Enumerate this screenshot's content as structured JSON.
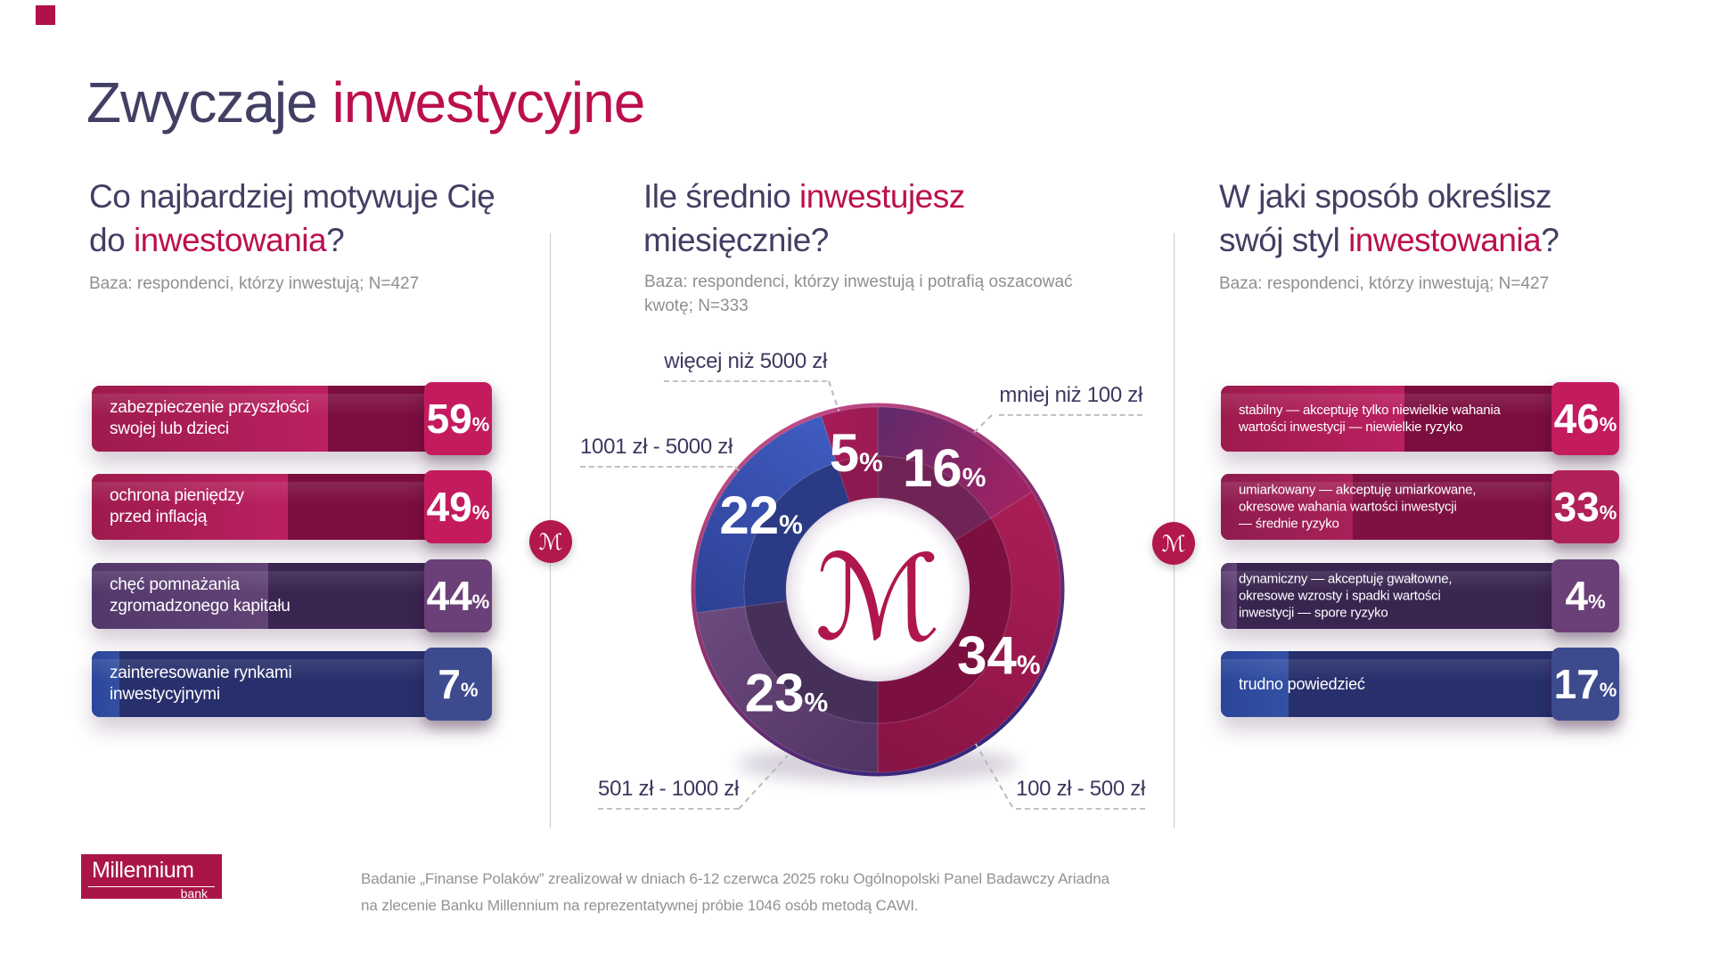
{
  "brand": {
    "color": "#b0114a"
  },
  "title": {
    "dark": "Zwyczaje ",
    "accent": "inwestycyjne"
  },
  "units": {
    "percent": "%"
  },
  "left": {
    "q1": "Co najbardziej motywuje Cię",
    "q2a": "do ",
    "q2b": "inwestowania",
    "q2c": "?",
    "base_note": "Baza: respondenci, którzy inwestują; N=427",
    "bars": [
      {
        "lines": [
          "zabezpieczenie przyszłości",
          "swojej lub dzieci"
        ],
        "value": 59
      },
      {
        "lines": [
          "ochrona pieniędzy",
          "przed inflacją"
        ],
        "value": 49
      },
      {
        "lines": [
          "chęć pomnażania",
          "zgromadzonego kapitału"
        ],
        "value": 44
      },
      {
        "lines": [
          "zainteresowanie rynkami",
          "inwestycyjnymi"
        ],
        "value": 7
      }
    ]
  },
  "middle": {
    "q1a": "Ile średnio ",
    "q1b": "inwestujesz",
    "q2": "miesięcznie?",
    "base_note_line1": "Baza: respondenci, którzy inwestują i potrafią oszacować",
    "base_note_line2": "kwotę; N=333"
  },
  "right": {
    "q1": "W jaki sposób określisz",
    "q2a": "swój styl ",
    "q2b": "inwestowania",
    "q2c": "?",
    "base_note": "Baza: respondenci, którzy inwestują; N=427",
    "bars": [
      {
        "lines": [
          "stabilny — akceptuję tylko niewielkie wahania",
          "wartości inwestycji — niewielkie ryzyko"
        ],
        "value": 46
      },
      {
        "lines": [
          "umiarkowany — akceptuję umiarkowane,",
          "okresowe wahania wartości inwestycji",
          "— średnie ryzyko"
        ],
        "value": 33
      },
      {
        "lines": [
          "dynamiczny — akceptuję gwałtowne,",
          "okresowe wzrosty i spadki wartości",
          "inwestycji — spore ryzyko"
        ],
        "value": 4
      },
      {
        "lines": [
          "trudno powiedzieć"
        ],
        "value": 17
      }
    ]
  },
  "chart_data": {
    "type": "pie",
    "donut": true,
    "title": "Ile średnio inwestujesz miesięcznie?",
    "start_angle_deg": 0,
    "direction": "clockwise",
    "slices": [
      {
        "label": "mniej niż 100 zł",
        "value": 16,
        "c1": "#5e2a6b",
        "c2": "#a32263",
        "inner": "#702455"
      },
      {
        "label": "100 zł - 500 zł",
        "value": 34,
        "c1": "#aa1e55",
        "c2": "#871345",
        "inner": "#7b1040"
      },
      {
        "label": "501 zł - 1000 zł",
        "value": 23,
        "c1": "#513463",
        "c2": "#6b4a7d",
        "inner": "#463059"
      },
      {
        "label": "1001 zł - 5000 zł",
        "value": 22,
        "c1": "#2e4093",
        "c2": "#3f5cc2",
        "inner": "#2b3a84"
      },
      {
        "label": "więcej niż 5000 zł",
        "value": 5,
        "c1": "#a51c58",
        "c2": "#9c1a53",
        "inner": "#8d1950"
      }
    ],
    "center_mark": "ℳ",
    "center_mark_color": "#b0164e"
  },
  "medallion": {
    "glyph": "ℳ"
  },
  "footer": {
    "logo_title": "Millennium",
    "logo_subtitle": "bank",
    "line1": "Badanie „Finanse Polaków” zrealizował w dniach 6-12 czerwca 2025 roku Ogólnopolski Panel Badawczy Ariadna",
    "line2": "na zlecenie Banku Millennium na reprezentatywnej próbie 1046 osób metodą CAWI."
  }
}
